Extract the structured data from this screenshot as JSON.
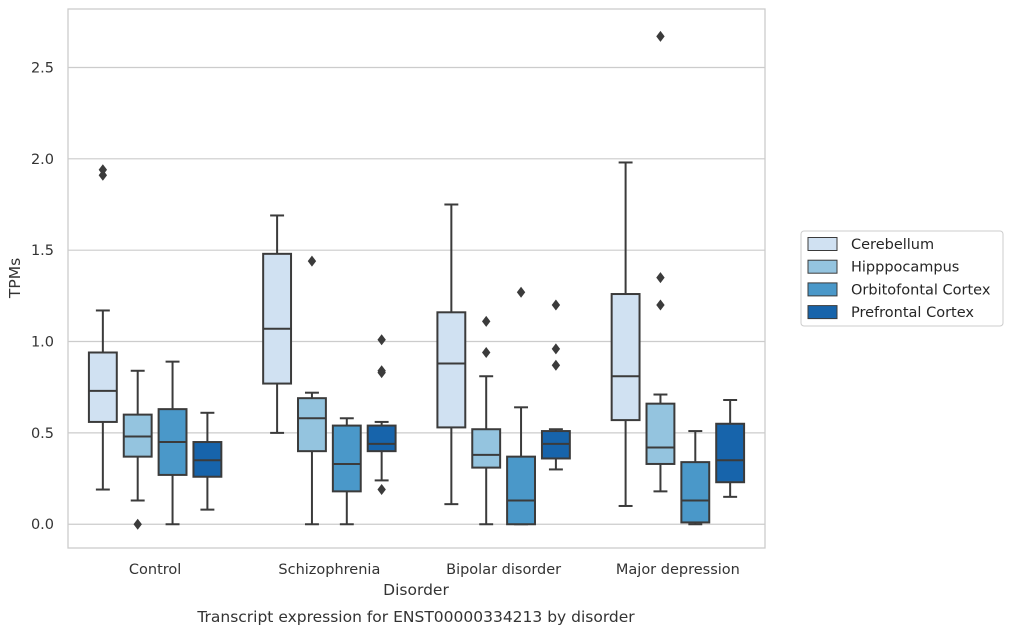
{
  "caption": "Transcript expression for ENST00000334213 by disorder",
  "chart_data": {
    "type": "boxplot",
    "xlabel": "Disorder",
    "ylabel": "TPMs",
    "ylim": [
      -0.13,
      2.82
    ],
    "yticks": [
      0.0,
      0.5,
      1.0,
      1.5,
      2.0,
      2.5
    ],
    "ytick_labels": [
      "0.0",
      "0.5",
      "1.0",
      "1.5",
      "2.0",
      "2.5"
    ],
    "grid": "horizontal",
    "legend_position": "right",
    "categories": [
      "Control",
      "Schizophrenia",
      "Bipolar disorder",
      "Major depression"
    ],
    "series": [
      {
        "name": "Cerebellum",
        "color": "#d0e1f2",
        "boxes": [
          {
            "whislo": 0.19,
            "q1": 0.56,
            "med": 0.73,
            "q3": 0.94,
            "whishi": 1.17,
            "fliers": [
              1.91,
              1.94
            ]
          },
          {
            "whislo": 0.5,
            "q1": 0.77,
            "med": 1.07,
            "q3": 1.48,
            "whishi": 1.69,
            "fliers": []
          },
          {
            "whislo": 0.11,
            "q1": 0.53,
            "med": 0.88,
            "q3": 1.16,
            "whishi": 1.75,
            "fliers": []
          },
          {
            "whislo": 0.1,
            "q1": 0.57,
            "med": 0.81,
            "q3": 1.26,
            "whishi": 1.98,
            "fliers": []
          }
        ]
      },
      {
        "name": "Hipppocampus",
        "color": "#94c4df",
        "boxes": [
          {
            "whislo": 0.13,
            "q1": 0.37,
            "med": 0.48,
            "q3": 0.6,
            "whishi": 0.84,
            "fliers": [
              0.0
            ]
          },
          {
            "whislo": 0.0,
            "q1": 0.4,
            "med": 0.58,
            "q3": 0.69,
            "whishi": 0.72,
            "fliers": [
              1.44
            ]
          },
          {
            "whislo": 0.0,
            "q1": 0.31,
            "med": 0.38,
            "q3": 0.52,
            "whishi": 0.81,
            "fliers": [
              0.94,
              1.11
            ]
          },
          {
            "whislo": 0.18,
            "q1": 0.33,
            "med": 0.42,
            "q3": 0.66,
            "whishi": 0.71,
            "fliers": [
              1.2,
              1.35,
              2.67
            ]
          }
        ]
      },
      {
        "name": "Orbitofontal Cortex",
        "color": "#4a98c9",
        "boxes": [
          {
            "whislo": 0.0,
            "q1": 0.27,
            "med": 0.45,
            "q3": 0.63,
            "whishi": 0.89,
            "fliers": []
          },
          {
            "whislo": 0.0,
            "q1": 0.18,
            "med": 0.33,
            "q3": 0.54,
            "whishi": 0.58,
            "fliers": []
          },
          {
            "whislo": 0.0,
            "q1": 0.0,
            "med": 0.13,
            "q3": 0.37,
            "whishi": 0.64,
            "fliers": [
              1.27
            ]
          },
          {
            "whislo": 0.0,
            "q1": 0.01,
            "med": 0.13,
            "q3": 0.34,
            "whishi": 0.51,
            "fliers": []
          }
        ]
      },
      {
        "name": "Prefrontal Cortex",
        "color": "#1764ab",
        "boxes": [
          {
            "whislo": 0.08,
            "q1": 0.26,
            "med": 0.35,
            "q3": 0.45,
            "whishi": 0.61,
            "fliers": []
          },
          {
            "whislo": 0.24,
            "q1": 0.4,
            "med": 0.44,
            "q3": 0.54,
            "whishi": 0.56,
            "fliers": [
              0.19,
              0.83,
              0.84,
              1.01
            ]
          },
          {
            "whislo": 0.3,
            "q1": 0.36,
            "med": 0.44,
            "q3": 0.51,
            "whishi": 0.52,
            "fliers": [
              0.87,
              0.96,
              1.2
            ]
          },
          {
            "whislo": 0.15,
            "q1": 0.23,
            "med": 0.35,
            "q3": 0.55,
            "whishi": 0.68,
            "fliers": []
          }
        ]
      }
    ]
  }
}
